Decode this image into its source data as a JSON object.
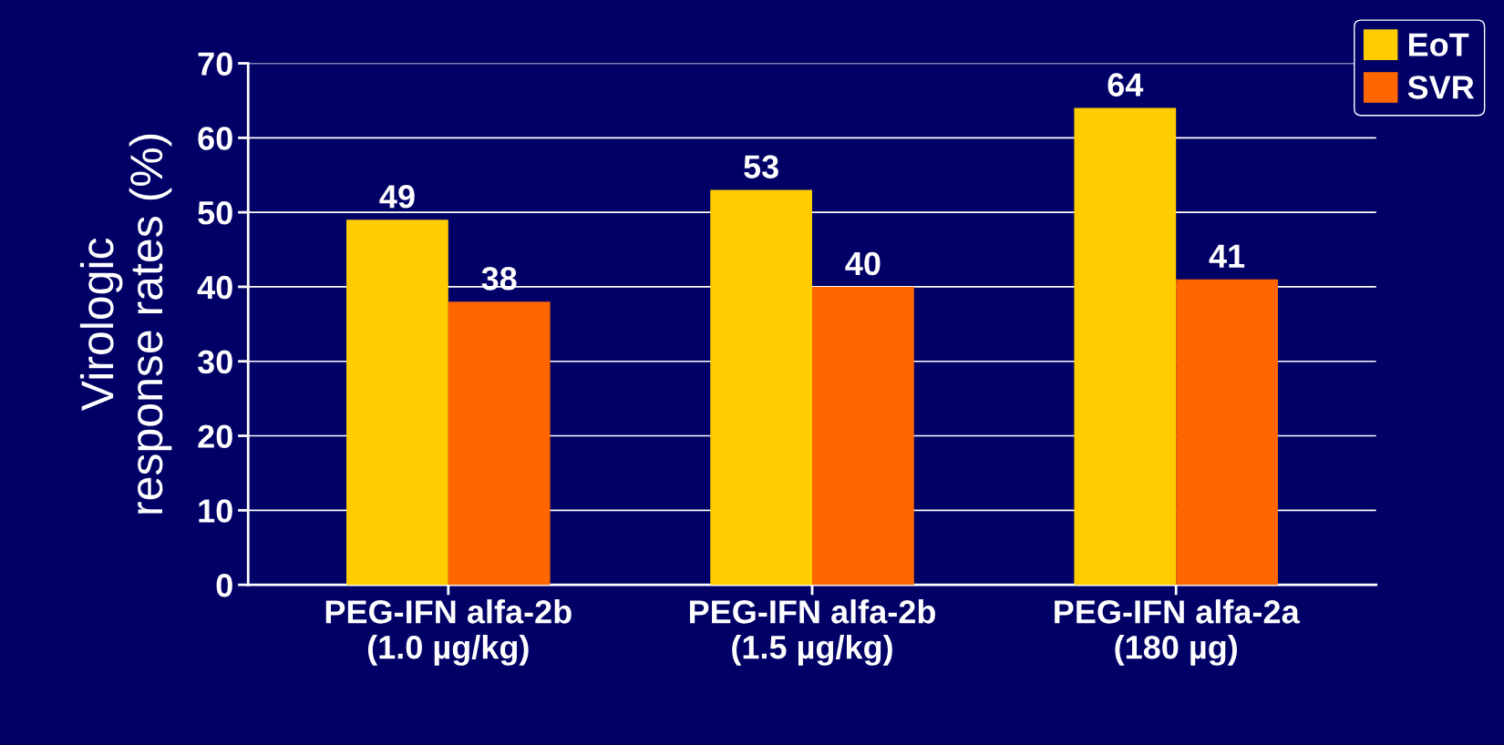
{
  "chart_data": {
    "type": "bar",
    "ylabel": "Virologic\nresponse rates (%)",
    "categories": [
      "PEG-IFN alfa-2b\n(1.0 µg/kg)",
      "PEG-IFN alfa-2b\n(1.5 µg/kg)",
      "PEG-IFN alfa-2a\n(180 µg)"
    ],
    "series": [
      {
        "name": "EoT",
        "color": "#ffcc00",
        "values": [
          49,
          53,
          64
        ]
      },
      {
        "name": "SVR",
        "color": "#ff6600",
        "values": [
          38,
          40,
          41
        ]
      }
    ],
    "ylim": [
      0,
      70
    ],
    "yticks": [
      0,
      10,
      20,
      30,
      40,
      50,
      60,
      70
    ],
    "grid": "y",
    "legend": "top right",
    "data_labels": true
  }
}
